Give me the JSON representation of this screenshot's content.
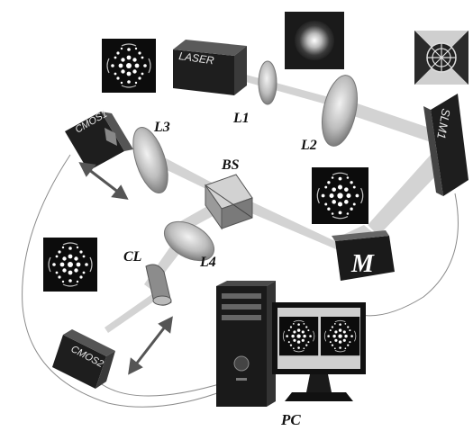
{
  "components": {
    "laser": "LASER",
    "l1": "L1",
    "l2": "L2",
    "l3": "L3",
    "l4": "L4",
    "bs": "BS",
    "cl": "CL",
    "m": "M",
    "slm": "SLM1",
    "cmos1": "CMOS1",
    "cmos2": "CMOS2",
    "pc": "PC"
  },
  "colors": {
    "beam": "#c8c8c8",
    "device": "#2b2b2b",
    "lens": "#b9b9b9",
    "pattern_bg": "#0c0c0c"
  }
}
